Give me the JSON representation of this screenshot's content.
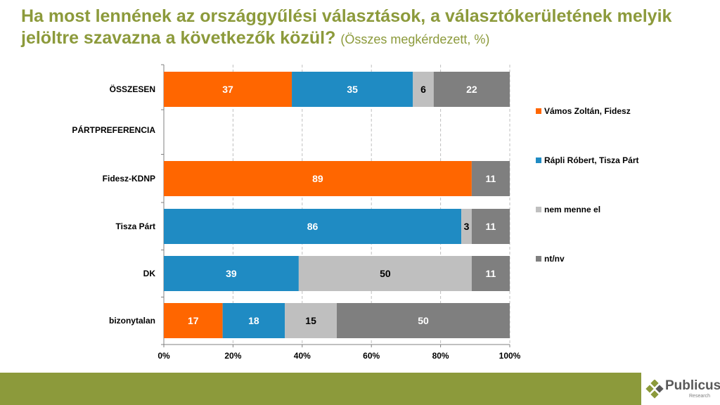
{
  "header": {
    "title": "Ha most lennének az országgyűlési választások, a választókerületének melyik jelöltre szavazna a következők közül?",
    "subtitle": "(Összes megkérdezett, %)"
  },
  "chart_data": {
    "type": "bar",
    "orientation": "horizontal",
    "stacked": "100%",
    "title": "Ha most lennének az országgyűlési választások, a választókerületének melyik jelöltre szavazna a következők közül?",
    "subtitle": "(Összes megkérdezett, %)",
    "categories": [
      "ÖSSZESEN",
      "PÁRTPREFERENCIA",
      "Fidesz-KDNP",
      "Tisza Párt",
      "DK",
      "bizonytalan"
    ],
    "series": [
      {
        "name": "Vámos Zoltán, Fidesz",
        "color": "#ff6600",
        "label_color": "#ffffff",
        "values": [
          37,
          null,
          89,
          null,
          null,
          17
        ]
      },
      {
        "name": "Rápli Róbert, Tisza Párt",
        "color": "#1f8bc3",
        "label_color": "#ffffff",
        "values": [
          35,
          null,
          null,
          86,
          39,
          18
        ]
      },
      {
        "name": "nem menne el",
        "color": "#bfbfbf",
        "label_color": "#000000",
        "values": [
          6,
          null,
          null,
          3,
          50,
          15
        ]
      },
      {
        "name": "nt/nv",
        "color": "#7f7f7f",
        "label_color": "#ffffff",
        "values": [
          22,
          null,
          11,
          11,
          11,
          50
        ]
      }
    ],
    "xlim": [
      0,
      100
    ],
    "xticks": [
      "0%",
      "20%",
      "40%",
      "60%",
      "80%",
      "100%"
    ],
    "grid": true,
    "legend_position": "right"
  },
  "footer": {
    "brand": "Publicus",
    "brand_sub": "Research",
    "band_color": "#8c9a3b"
  }
}
